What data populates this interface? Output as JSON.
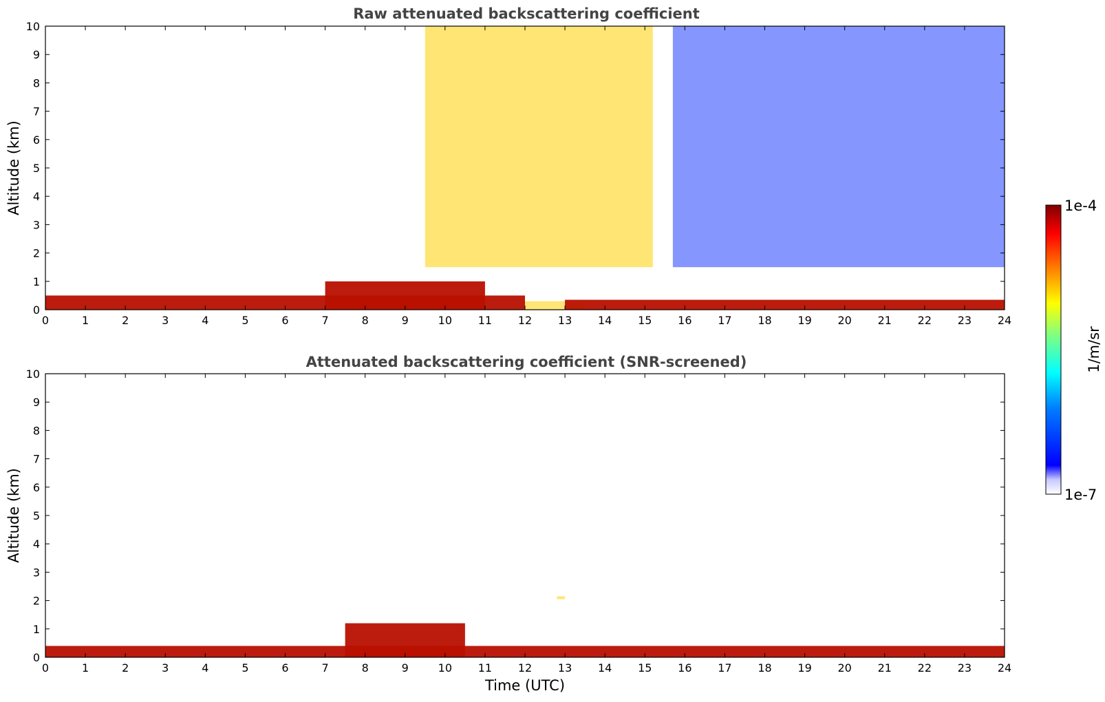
{
  "chart_data": [
    {
      "type": "heatmap",
      "title": "Raw attenuated backscattering coefficient",
      "xlabel": "",
      "ylabel": "Altitude (km)",
      "xlim": [
        0,
        24
      ],
      "ylim": [
        0,
        10
      ],
      "xticks": [
        "0",
        "1",
        "2",
        "3",
        "4",
        "5",
        "6",
        "7",
        "8",
        "9",
        "10",
        "11",
        "12",
        "13",
        "14",
        "15",
        "16",
        "17",
        "18",
        "19",
        "20",
        "21",
        "22",
        "23",
        "24"
      ],
      "yticks": [
        "0",
        "1",
        "2",
        "3",
        "4",
        "5",
        "6",
        "7",
        "8",
        "9",
        "10"
      ],
      "features": [
        {
          "time_range": [
            0,
            12
          ],
          "altitude_range": [
            0,
            0.5
          ],
          "level": "high"
        },
        {
          "time_range": [
            7,
            11
          ],
          "altitude_range": [
            0,
            1.0
          ],
          "level": "high"
        },
        {
          "time_range": [
            12,
            13.5
          ],
          "altitude_range": [
            0,
            0.3
          ],
          "level": "medium"
        },
        {
          "time_range": [
            13,
            24
          ],
          "altitude_range": [
            0,
            0.35
          ],
          "level": "high"
        },
        {
          "time_range": [
            9.5,
            15.2
          ],
          "altitude_range": [
            1.5,
            10
          ],
          "level": "medium"
        },
        {
          "time_range": [
            15.7,
            24
          ],
          "altitude_range": [
            1.5,
            10
          ],
          "level": "low"
        }
      ]
    },
    {
      "type": "heatmap",
      "title": "Attenuated backscattering coefficient (SNR-screened)",
      "xlabel": "Time (UTC)",
      "ylabel": "Altitude (km)",
      "xlim": [
        0,
        24
      ],
      "ylim": [
        0,
        10
      ],
      "xticks": [
        "0",
        "1",
        "2",
        "3",
        "4",
        "5",
        "6",
        "7",
        "8",
        "9",
        "10",
        "11",
        "12",
        "13",
        "14",
        "15",
        "16",
        "17",
        "18",
        "19",
        "20",
        "21",
        "22",
        "23",
        "24"
      ],
      "yticks": [
        "0",
        "1",
        "2",
        "3",
        "4",
        "5",
        "6",
        "7",
        "8",
        "9",
        "10"
      ],
      "features": [
        {
          "time_range": [
            0,
            24
          ],
          "altitude_range": [
            0,
            0.4
          ],
          "level": "high"
        },
        {
          "time_range": [
            7.5,
            10.5
          ],
          "altitude_range": [
            0,
            1.2
          ],
          "level": "high"
        },
        {
          "time_range": [
            12.8,
            13.0
          ],
          "altitude_range": [
            2.05,
            2.15
          ],
          "level": "medium"
        }
      ]
    }
  ],
  "colorbar": {
    "label": "1/m/sr",
    "max_label": "1e-4",
    "min_label": "1e-7",
    "colormap": "jet"
  }
}
